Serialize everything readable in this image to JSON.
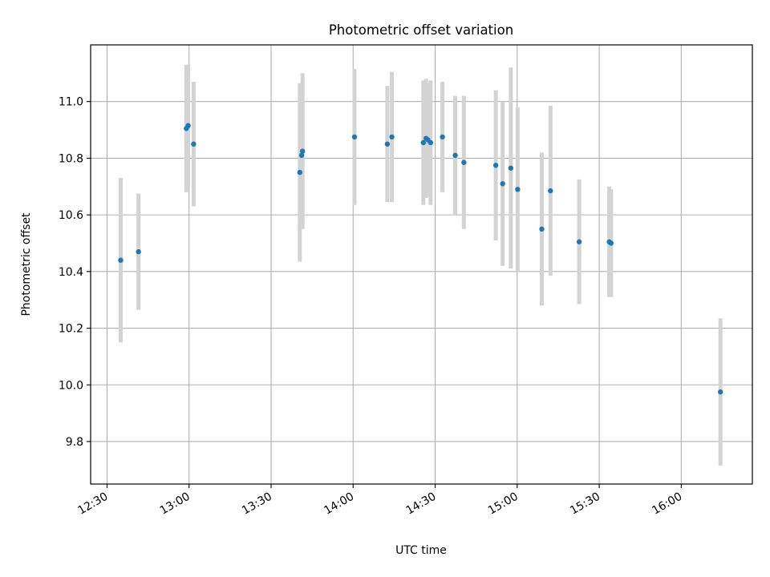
{
  "chart_data": {
    "type": "scatter",
    "title": "Photometric offset variation",
    "xlabel": "UTC time",
    "ylabel": "Photometric offset",
    "grid": true,
    "colors": {
      "points": "#1f77b4",
      "errorbars": "#d3d3d3",
      "grid": "#b0b0b0"
    },
    "x_ticks": [
      "12:30",
      "13:00",
      "13:30",
      "14:00",
      "14:30",
      "15:00",
      "15:30",
      "16:00"
    ],
    "y_ticks": [
      "9.8",
      "10.0",
      "10.2",
      "10.4",
      "10.6",
      "10.8",
      "11.0"
    ],
    "xlim": [
      "12:24",
      "16:26"
    ],
    "ylim": [
      9.65,
      11.2
    ],
    "points": [
      {
        "x": "12:35:00",
        "y": 10.44,
        "err": 0.29
      },
      {
        "x": "12:41:30",
        "y": 10.47,
        "err": 0.205
      },
      {
        "x": "12:59:00",
        "y": 10.905,
        "err": 0.225
      },
      {
        "x": "12:59:40",
        "y": 10.915,
        "err": 0.215
      },
      {
        "x": "13:01:40",
        "y": 10.85,
        "err": 0.22
      },
      {
        "x": "13:40:30",
        "y": 10.75,
        "err": 0.315
      },
      {
        "x": "13:41:10",
        "y": 10.81,
        "err": 0.255
      },
      {
        "x": "13:41:30",
        "y": 10.825,
        "err": 0.275
      },
      {
        "x": "14:00:30",
        "y": 10.875,
        "err": 0.24
      },
      {
        "x": "14:12:30",
        "y": 10.85,
        "err": 0.205
      },
      {
        "x": "14:14:10",
        "y": 10.875,
        "err": 0.23
      },
      {
        "x": "14:25:40",
        "y": 10.855,
        "err": 0.22
      },
      {
        "x": "14:26:40",
        "y": 10.87,
        "err": 0.21
      },
      {
        "x": "14:27:20",
        "y": 10.865,
        "err": 0.2
      },
      {
        "x": "14:28:20",
        "y": 10.855,
        "err": 0.22
      },
      {
        "x": "14:32:40",
        "y": 10.875,
        "err": 0.195
      },
      {
        "x": "14:37:20",
        "y": 10.81,
        "err": 0.21
      },
      {
        "x": "14:40:30",
        "y": 10.785,
        "err": 0.235
      },
      {
        "x": "14:52:10",
        "y": 10.775,
        "err": 0.265
      },
      {
        "x": "14:54:40",
        "y": 10.71,
        "err": 0.29
      },
      {
        "x": "14:57:40",
        "y": 10.765,
        "err": 0.355
      },
      {
        "x": "15:00:10",
        "y": 10.69,
        "err": 0.29
      },
      {
        "x": "15:09:00",
        "y": 10.55,
        "err": 0.27
      },
      {
        "x": "15:12:10",
        "y": 10.685,
        "err": 0.3
      },
      {
        "x": "15:22:40",
        "y": 10.505,
        "err": 0.22
      },
      {
        "x": "15:33:40",
        "y": 10.505,
        "err": 0.195
      },
      {
        "x": "15:34:20",
        "y": 10.5,
        "err": 0.19
      },
      {
        "x": "16:14:20",
        "y": 9.975,
        "err": 0.26
      }
    ]
  }
}
